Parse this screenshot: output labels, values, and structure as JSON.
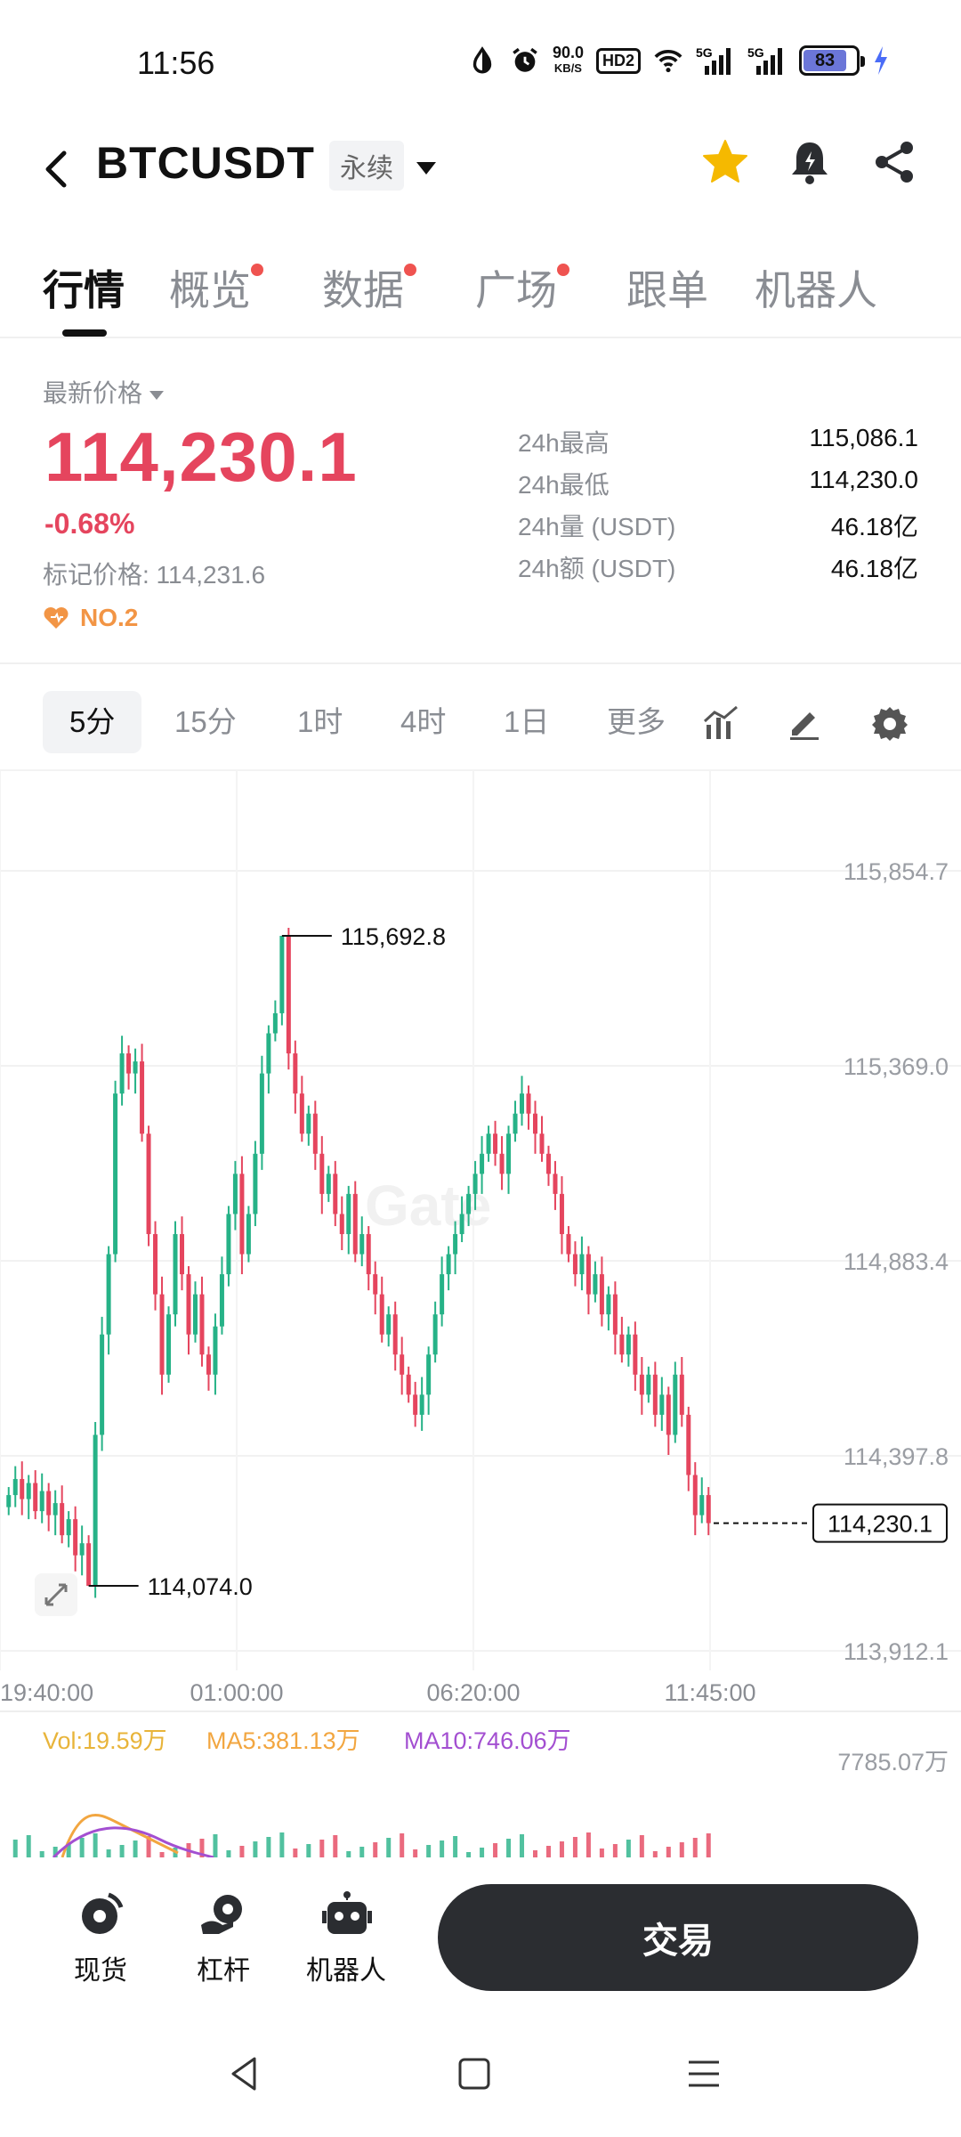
{
  "status": {
    "time": "11:56",
    "speed_value": "90.0",
    "speed_unit": "KB/S",
    "hd": "HD2",
    "net1": "5G",
    "net2": "5G",
    "battery": "83"
  },
  "header": {
    "title": "BTCUSDT",
    "badge": "永续"
  },
  "tabs": [
    {
      "label": "行情",
      "active": true,
      "dot": false
    },
    {
      "label": "概览",
      "active": false,
      "dot": true
    },
    {
      "label": "数据",
      "active": false,
      "dot": true
    },
    {
      "label": "广场",
      "active": false,
      "dot": true
    },
    {
      "label": "跟单",
      "active": false,
      "dot": false
    },
    {
      "label": "机器人",
      "active": false,
      "dot": false
    }
  ],
  "price": {
    "latest_label": "最新价格",
    "value": "114,230.1",
    "change": "-0.68%",
    "mark_price": "标记价格: 114,231.6",
    "rank": "NO.2",
    "stats": [
      {
        "label": "24h最高",
        "value": "115,086.1"
      },
      {
        "label": "24h最低",
        "value": "114,230.0"
      },
      {
        "label": "24h量 (USDT)",
        "value": "46.18亿"
      },
      {
        "label": "24h额 (USDT)",
        "value": "46.18亿"
      }
    ]
  },
  "intervals": [
    "5分",
    "15分",
    "1时",
    "4时",
    "1日",
    "更多"
  ],
  "chart_data": {
    "type": "candlestick",
    "y_ticks": [
      "115,854.7",
      "115,369.0",
      "114,883.4",
      "114,397.8",
      "113,912.1"
    ],
    "x_ticks": [
      "19:40:00",
      "01:00:00",
      "06:20:00",
      "11:45:00"
    ],
    "ylim": [
      113912.1,
      115854.7
    ],
    "high_label": "115,692.8",
    "low_label": "114,074.0",
    "last_price_label": "114,230.1",
    "close_series": [
      114300,
      114340,
      114290,
      114330,
      114260,
      114310,
      114250,
      114280,
      114200,
      114240,
      114150,
      114180,
      114074,
      114450,
      114700,
      114900,
      115300,
      115400,
      115350,
      115380,
      115200,
      114950,
      114800,
      114600,
      114750,
      114950,
      114850,
      114700,
      114800,
      114650,
      114600,
      114720,
      114850,
      115000,
      115100,
      114900,
      115000,
      115150,
      115350,
      115450,
      115500,
      115692.8,
      115400,
      115300,
      115200,
      115250,
      115150,
      115050,
      115100,
      115000,
      114950,
      115050,
      114900,
      114950,
      114850,
      114800,
      114700,
      114750,
      114650,
      114600,
      114550,
      114500,
      114550,
      114650,
      114750,
      114850,
      114900,
      114950,
      115000,
      115050,
      115100,
      115150,
      115200,
      115150,
      115100,
      115200,
      115250,
      115300,
      115250,
      115200,
      115150,
      115100,
      115050,
      114950,
      114900,
      114850,
      114900,
      114800,
      114850,
      114750,
      114800,
      114700,
      114650,
      114700,
      114600,
      114550,
      114600,
      114500,
      114550,
      114450,
      114600,
      114500,
      114350,
      114250,
      114300,
      114230.1
    ],
    "volume_legend": {
      "vol": "Vol:19.59万",
      "ma5": "MA5:381.13万",
      "ma10": "MA10:746.06万"
    },
    "volume_max_label": "7785.07万",
    "colors": {
      "up": "#26b287",
      "down": "#e5455e",
      "vol": "#e8b43a",
      "ma5": "#f2a640",
      "ma10": "#a34fd1"
    }
  },
  "bottom_nav": [
    {
      "label": "现货",
      "icon": "spot-icon"
    },
    {
      "label": "杠杆",
      "icon": "margin-icon"
    },
    {
      "label": "机器人",
      "icon": "robot-icon"
    }
  ],
  "trade_label": "交易"
}
